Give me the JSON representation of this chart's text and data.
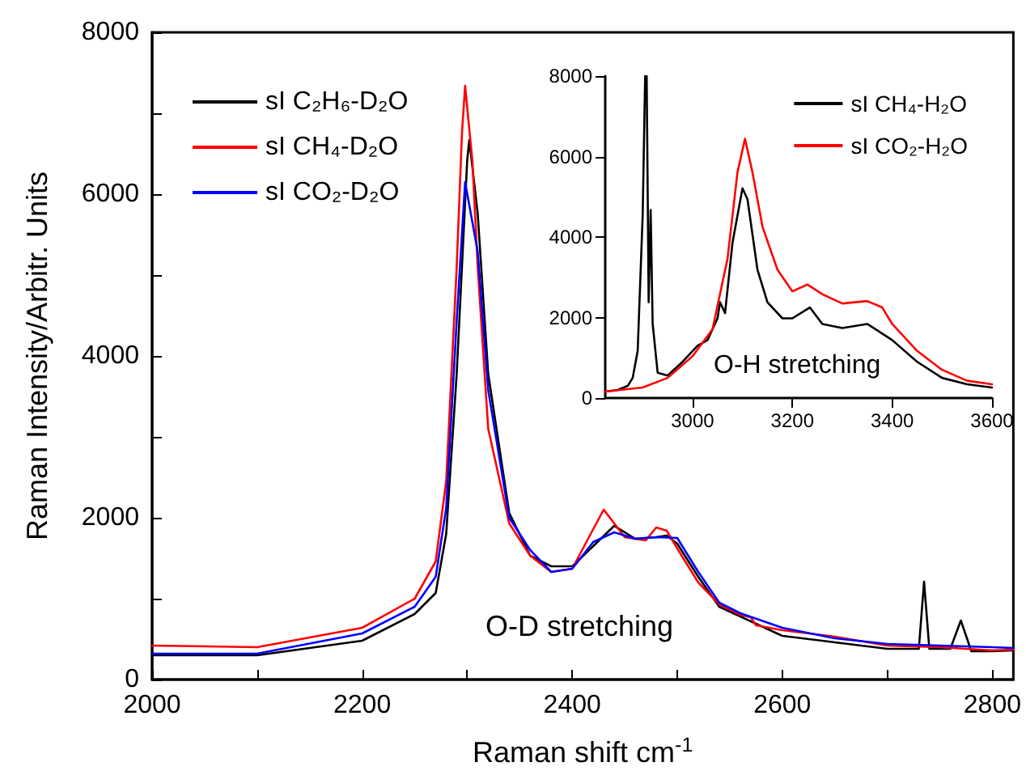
{
  "chart_data": [
    {
      "type": "line",
      "xlabel": "Raman shift cm$^{-1}$",
      "ylabel": "Raman Intensity/Arbitr. Units",
      "annotations": [
        "O-D stretching"
      ],
      "xlim": [
        2000,
        2820
      ],
      "xticks": [
        2000,
        {
          "value": 2100,
          "label": null
        },
        2200,
        {
          "value": 2300,
          "label": null
        },
        2400,
        {
          "value": 2500,
          "label": null
        },
        2600,
        {
          "value": 2700,
          "label": null
        },
        2800
      ],
      "ylim": [
        0,
        8000
      ],
      "yticks": [
        0,
        {
          "value": 1000,
          "label": null
        },
        2000,
        {
          "value": 3000,
          "label": null
        },
        4000,
        {
          "value": 5000,
          "label": null
        },
        6000,
        {
          "value": 7000,
          "label": null
        },
        8000
      ],
      "grid": false,
      "legend": "top left",
      "marker": "none",
      "line_style": "solid",
      "series": [
        {
          "name": "sI C₂H₆-D₂O",
          "color": "#000000",
          "x": [
            2000,
            2100,
            2200,
            2250,
            2270,
            2280,
            2290,
            2300,
            2302,
            2310,
            2320,
            2340,
            2360,
            2380,
            2400,
            2420,
            2440,
            2460,
            2480,
            2490,
            2500,
            2520,
            2540,
            2560,
            2600,
            2650,
            2700,
            2730,
            2735,
            2740,
            2760,
            2770,
            2780,
            2800,
            2820
          ],
          "values": [
            300,
            300,
            480,
            810,
            1070,
            1800,
            3780,
            6420,
            6670,
            5760,
            3780,
            2060,
            1530,
            1400,
            1400,
            1650,
            1900,
            1740,
            1760,
            1780,
            1680,
            1270,
            900,
            780,
            540,
            460,
            380,
            380,
            1210,
            380,
            380,
            730,
            350,
            350,
            360
          ]
        },
        {
          "name": "sI CH₄-D₂O",
          "color": "#ff0000",
          "x": [
            2000,
            2100,
            2200,
            2250,
            2270,
            2280,
            2290,
            2295,
            2298,
            2305,
            2310,
            2320,
            2340,
            2360,
            2380,
            2400,
            2420,
            2430,
            2450,
            2470,
            2480,
            2490,
            2500,
            2520,
            2540,
            2560,
            2570,
            2575,
            2600,
            2650,
            2700,
            2750,
            2800,
            2820
          ],
          "values": [
            420,
            400,
            640,
            1000,
            1460,
            2450,
            5100,
            6750,
            7340,
            6400,
            5100,
            3100,
            1930,
            1530,
            1330,
            1370,
            1860,
            2100,
            1760,
            1720,
            1880,
            1840,
            1620,
            1200,
            930,
            800,
            770,
            670,
            610,
            530,
            420,
            400,
            360,
            370
          ]
        },
        {
          "name": "sI CO₂-D₂O",
          "color": "#0000ff",
          "x": [
            2000,
            2100,
            2200,
            2250,
            2270,
            2280,
            2290,
            2298,
            2310,
            2320,
            2340,
            2360,
            2380,
            2400,
            2420,
            2440,
            2460,
            2480,
            2500,
            2520,
            2540,
            2560,
            2600,
            2650,
            2700,
            2750,
            2800,
            2820
          ],
          "values": [
            320,
            320,
            570,
            900,
            1270,
            2120,
            4440,
            6150,
            5290,
            3580,
            2000,
            1600,
            1330,
            1370,
            1700,
            1820,
            1740,
            1760,
            1750,
            1330,
            950,
            820,
            640,
            510,
            440,
            420,
            400,
            390
          ]
        }
      ]
    },
    {
      "type": "line",
      "annotations": [
        "O-H stretching"
      ],
      "xlim": [
        2825,
        3600
      ],
      "xticks": [
        3000,
        3200,
        3400,
        3600
      ],
      "ylim": [
        0,
        8000
      ],
      "yticks": [
        0,
        2000,
        4000,
        6000,
        8000
      ],
      "grid": false,
      "legend": "top right",
      "marker": "none",
      "line_style": "solid",
      "series": [
        {
          "name": "sI CH₄-H₂O",
          "color": "#000000",
          "x": [
            2825,
            2850,
            2870,
            2880,
            2890,
            2900,
            2905,
            2908,
            2912,
            2916,
            2920,
            2930,
            2950,
            2980,
            3010,
            3030,
            3050,
            3055,
            3065,
            3080,
            3100,
            3110,
            3130,
            3150,
            3180,
            3200,
            3235,
            3260,
            3300,
            3350,
            3400,
            3450,
            3500,
            3550,
            3600
          ],
          "values": [
            160,
            200,
            300,
            500,
            1170,
            4530,
            8000,
            8000,
            2380,
            4670,
            1840,
            630,
            560,
            900,
            1300,
            1440,
            1980,
            2380,
            2110,
            3860,
            5210,
            4940,
            3190,
            2380,
            1980,
            1980,
            2250,
            1840,
            1740,
            1840,
            1440,
            900,
            500,
            340,
            260
          ]
        },
        {
          "name": "sI CO₂-H₂O",
          "color": "#ff0000",
          "x": [
            2825,
            2900,
            2950,
            3000,
            3040,
            3070,
            3090,
            3105,
            3120,
            3140,
            3170,
            3200,
            3230,
            3260,
            3300,
            3350,
            3380,
            3400,
            3450,
            3500,
            3550,
            3600
          ],
          "values": [
            160,
            260,
            500,
            1040,
            1710,
            3460,
            5610,
            6440,
            5610,
            4260,
            3190,
            2650,
            2820,
            2580,
            2350,
            2410,
            2250,
            1840,
            1170,
            700,
            430,
            340
          ]
        }
      ]
    }
  ]
}
